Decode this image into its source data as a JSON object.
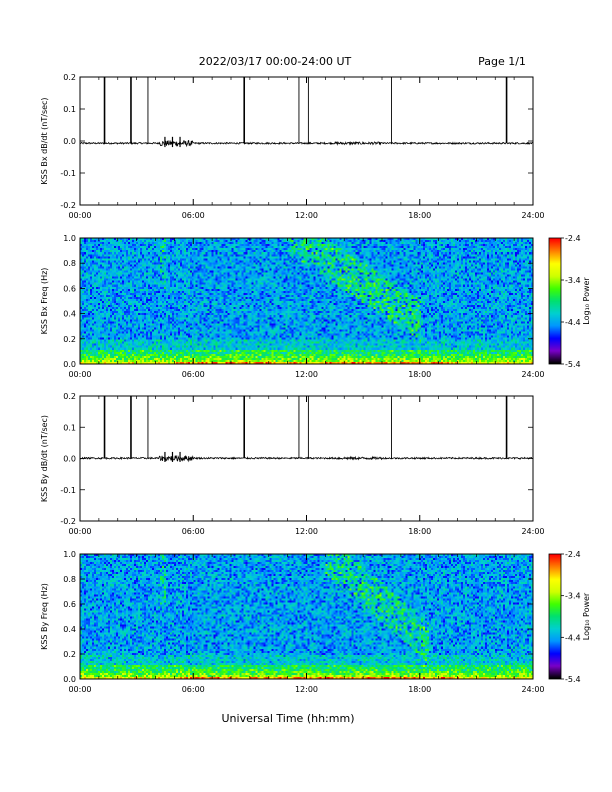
{
  "header": {
    "date_range": "2022/03/17  00:00-24:00 UT",
    "page": "Page 1/1"
  },
  "footer": {
    "xlabel": "Universal Time (hh:mm)"
  },
  "colors": {
    "trace": "#000000",
    "colormap": [
      "#000000",
      "#7a00c8",
      "#0000ff",
      "#0096ff",
      "#00d0d0",
      "#00e070",
      "#40ff00",
      "#d0ff00",
      "#ffff00",
      "#ff8000",
      "#ff0000"
    ]
  },
  "chart_data": [
    {
      "type": "line",
      "ylabel": "KSS Bx dB/dt (nT/sec)",
      "xlim": [
        "00:00",
        "24:00"
      ],
      "ylim": [
        -0.2,
        0.2
      ],
      "x_ticks": [
        "00:00",
        "06:00",
        "12:00",
        "18:00",
        "24:00"
      ],
      "y_ticks": [
        "0.2",
        "0.1",
        "0.0",
        "-0.1",
        "-0.2"
      ],
      "baseline": -0.007,
      "spike_times_hours": [
        1.3,
        2.7,
        3.6,
        8.7,
        11.6,
        12.1,
        16.5,
        22.6
      ],
      "spike_top": 0.2,
      "disturbance_window_hours": [
        4.2,
        6.0
      ]
    },
    {
      "type": "heatmap",
      "ylabel": "KSS Bx Freq (Hz)",
      "xlim": [
        "00:00",
        "24:00"
      ],
      "ylim": [
        0.0,
        1.0
      ],
      "x_ticks": [
        "00:00",
        "06:00",
        "12:00",
        "18:00",
        "24:00"
      ],
      "y_ticks": [
        "1.0",
        "0.8",
        "0.6",
        "0.4",
        "0.2",
        "0.0"
      ],
      "colorbar": {
        "label": "Log₁₀ Power",
        "ticks": [
          "-2.4",
          "-3.4",
          "-4.4",
          "-5.4"
        ],
        "range": [
          -5.4,
          -2.4
        ]
      }
    },
    {
      "type": "line",
      "ylabel": "KSS By dB/dt (nT/sec)",
      "xlim": [
        "00:00",
        "24:00"
      ],
      "ylim": [
        -0.2,
        0.2
      ],
      "x_ticks": [
        "00:00",
        "06:00",
        "12:00",
        "18:00",
        "24:00"
      ],
      "y_ticks": [
        "0.2",
        "0.1",
        "0.0",
        "-0.1",
        "-0.2"
      ],
      "baseline": 0.001,
      "spike_times_hours": [
        1.3,
        2.7,
        3.6,
        8.7,
        11.6,
        12.1,
        16.5,
        22.6
      ],
      "spike_top": 0.2,
      "disturbance_window_hours": [
        4.2,
        6.0
      ]
    },
    {
      "type": "heatmap",
      "ylabel": "KSS By Freq (Hz)",
      "xlim": [
        "00:00",
        "24:00"
      ],
      "ylim": [
        0.0,
        1.0
      ],
      "x_ticks": [
        "00:00",
        "06:00",
        "12:00",
        "18:00",
        "24:00"
      ],
      "y_ticks": [
        "1.0",
        "0.8",
        "0.6",
        "0.4",
        "0.2",
        "0.0"
      ],
      "colorbar": {
        "label": "Log₁₀ Power",
        "ticks": [
          "-2.4",
          "-3.4",
          "-4.4",
          "-5.4"
        ],
        "range": [
          -5.4,
          -2.4
        ]
      }
    }
  ]
}
